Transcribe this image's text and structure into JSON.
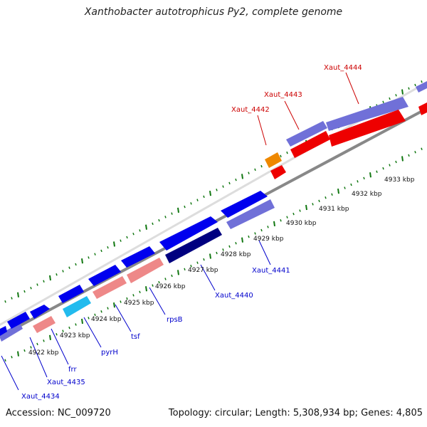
{
  "title": "Xanthobacter autotrophicus Py2, complete genome",
  "footer": {
    "accession": "Accession: NC_009720",
    "summary": "Topology: circular; Length: 5,308,934 bp; Genes: 4,805"
  },
  "colors": {
    "forward_cds": "#0000ee",
    "forward_cds_alt": "#7070d8",
    "dark_cds": "#000080",
    "rrna_like": "#ee8888",
    "highlight_red": "#ee0000",
    "orange": "#ee8800",
    "cyan": "#22bbee",
    "label_blue": "#0000cc",
    "label_red": "#cc0000",
    "backbone": "#888888",
    "tick_green": "#117711"
  },
  "scale": {
    "kbp_labels": [
      "4922 kbp",
      "4923 kbp",
      "4924 kbp",
      "4925 kbp",
      "4926 kbp",
      "4927 kbp",
      "4928 kbp",
      "4929 kbp",
      "4930 kbp",
      "4931 kbp",
      "4932 kbp",
      "4933 kbp"
    ]
  },
  "gene_labels": {
    "xaut_4434": "Xaut_4434",
    "xaut_4435": "Xaut_4435",
    "frr": "frr",
    "pyrH": "pyrH",
    "tsf": "tsf",
    "rpsB": "rpsB",
    "xaut_4440": "Xaut_4440",
    "xaut_4441": "Xaut_4441",
    "xaut_4442": "Xaut_4442",
    "xaut_4443": "Xaut_4443",
    "xaut_4444": "Xaut_4444"
  }
}
